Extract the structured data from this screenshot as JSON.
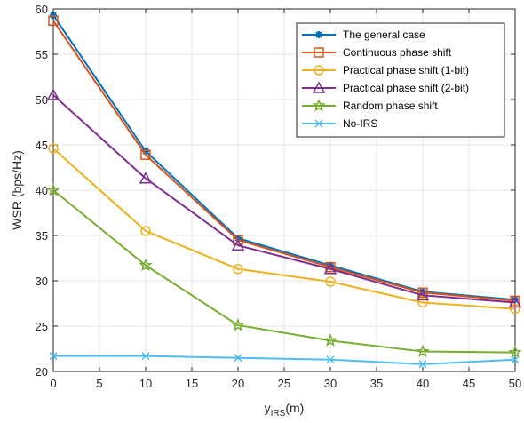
{
  "chart_data": {
    "type": "line",
    "title": "",
    "xlabel_main": "y",
    "xlabel_sub": "IRS",
    "xlabel_unit": "(m)",
    "ylabel": "WSR (bps/Hz)",
    "xlim": [
      0,
      50
    ],
    "ylim": [
      20,
      60
    ],
    "xticks": [
      0,
      5,
      10,
      15,
      20,
      25,
      30,
      35,
      40,
      45,
      50
    ],
    "yticks": [
      20,
      25,
      30,
      35,
      40,
      45,
      50,
      55,
      60
    ],
    "grid": true,
    "legend_position": "top-right",
    "x": [
      0,
      10,
      20,
      30,
      40,
      50
    ],
    "series": [
      {
        "name": "The general case",
        "color": "#0072BD",
        "marker": "asterisk",
        "values": [
          59.3,
          44.3,
          34.7,
          31.7,
          28.8,
          27.9
        ]
      },
      {
        "name": "Continuous phase shift",
        "color": "#D95319",
        "marker": "square",
        "values": [
          58.7,
          43.9,
          34.5,
          31.5,
          28.7,
          27.8
        ]
      },
      {
        "name": "Practical phase shift (1-bit)",
        "color": "#EDB120",
        "marker": "circle",
        "values": [
          44.6,
          35.5,
          31.3,
          29.9,
          27.6,
          26.9
        ]
      },
      {
        "name": "Practical phase shift (2-bit)",
        "color": "#7E2F8E",
        "marker": "triangle",
        "values": [
          50.5,
          41.3,
          33.9,
          31.3,
          28.4,
          27.6
        ]
      },
      {
        "name": "Random phase shift",
        "color": "#77AC30",
        "marker": "star",
        "values": [
          40.0,
          31.7,
          25.1,
          23.4,
          22.2,
          22.1
        ]
      },
      {
        "name": "No-IRS",
        "color": "#4DBEEE",
        "marker": "x",
        "values": [
          21.7,
          21.7,
          21.5,
          21.3,
          20.8,
          21.3
        ]
      }
    ]
  }
}
